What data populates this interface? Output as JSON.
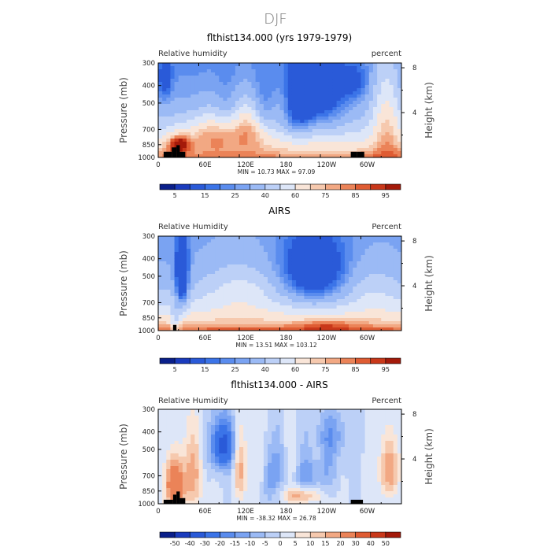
{
  "figure_title": "DJF",
  "chart_data": [
    {
      "type": "heatmap",
      "title": "flthist134.000 (yrs 1979-1979)",
      "left_label": "Relative humidity",
      "right_label": "percent",
      "ylabel": "Pressure (mb)",
      "y2label": "Height (km)",
      "x_ticks": [
        "0",
        "60E",
        "120E",
        "180",
        "120W",
        "60W"
      ],
      "x_tick_values": [
        0,
        60,
        120,
        180,
        240,
        300
      ],
      "xlim": [
        0,
        360
      ],
      "y_ticks": [
        "300",
        "400",
        "500",
        "700",
        "850",
        "1000"
      ],
      "y_tick_values": [
        300,
        400,
        500,
        700,
        850,
        1000
      ],
      "ylim": [
        300,
        1000
      ],
      "height_ticks": [
        "8",
        "4"
      ],
      "height_tick_values": [
        8,
        4
      ],
      "min_label": "MIN =",
      "min_value": "10.73",
      "max_label": "MAX =",
      "max_value": "97.09",
      "colorbar_ticks": [
        "5",
        "15",
        "25",
        "40",
        "60",
        "75",
        "85",
        "95"
      ],
      "colorbar_levels": [
        5,
        10,
        15,
        20,
        25,
        30,
        40,
        50,
        60,
        70,
        75,
        80,
        85,
        90,
        95
      ],
      "colors": [
        "#0a1f8a",
        "#1a3bbd",
        "#2a5ad8",
        "#3b74e8",
        "#5a8cee",
        "#7aa3f2",
        "#9bbaf5",
        "#bcd0f7",
        "#dde6f8",
        "#f9e5d8",
        "#f6c9ae",
        "#f2a883",
        "#eb8358",
        "#df5c33",
        "#c9381a",
        "#a41a0a"
      ],
      "mode": "model"
    },
    {
      "type": "heatmap",
      "title": "AIRS",
      "left_label": "Relative Humidity",
      "right_label": "Percent",
      "ylabel": "Pressure (mb)",
      "y2label": "Height (km)",
      "x_ticks": [
        "0",
        "60E",
        "120E",
        "180",
        "120W",
        "60W"
      ],
      "x_tick_values": [
        0,
        60,
        120,
        180,
        240,
        300
      ],
      "xlim": [
        0,
        360
      ],
      "y_ticks": [
        "300",
        "400",
        "500",
        "700",
        "850",
        "1000"
      ],
      "y_tick_values": [
        300,
        400,
        500,
        700,
        850,
        1000
      ],
      "ylim": [
        300,
        1000
      ],
      "height_ticks": [
        "8",
        "4"
      ],
      "height_tick_values": [
        8,
        4
      ],
      "min_label": "MIN =",
      "min_value": "13.51",
      "max_label": "MAX =",
      "max_value": "103.12",
      "colorbar_ticks": [
        "5",
        "15",
        "25",
        "40",
        "60",
        "75",
        "85",
        "95"
      ],
      "colorbar_levels": [
        5,
        10,
        15,
        20,
        25,
        30,
        40,
        50,
        60,
        70,
        75,
        80,
        85,
        90,
        95
      ],
      "colors": [
        "#0a1f8a",
        "#1a3bbd",
        "#2a5ad8",
        "#3b74e8",
        "#5a8cee",
        "#7aa3f2",
        "#9bbaf5",
        "#bcd0f7",
        "#dde6f8",
        "#f9e5d8",
        "#f6c9ae",
        "#f2a883",
        "#eb8358",
        "#df5c33",
        "#c9381a",
        "#a41a0a"
      ],
      "mode": "obs"
    },
    {
      "type": "heatmap",
      "title": "flthist134.000 - AIRS",
      "left_label": "Relative Humidity",
      "right_label": "Percent",
      "ylabel": "Pressure (mb)",
      "y2label": "Height (km)",
      "x_ticks": [
        "0",
        "60E",
        "120E",
        "180",
        "120W",
        "60W"
      ],
      "x_tick_values": [
        0,
        60,
        120,
        180,
        240,
        300
      ],
      "xlim": [
        0,
        360
      ],
      "y_ticks": [
        "300",
        "400",
        "500",
        "700",
        "850",
        "1000"
      ],
      "y_tick_values": [
        300,
        400,
        500,
        700,
        850,
        1000
      ],
      "ylim": [
        300,
        1000
      ],
      "height_ticks": [
        "8",
        "4"
      ],
      "height_tick_values": [
        8,
        4
      ],
      "min_label": "MIN =",
      "min_value": "-38.32",
      "max_label": "MAX =",
      "max_value": "26.78",
      "colorbar_ticks": [
        "-50",
        "-40",
        "-30",
        "-20",
        "-15",
        "-10",
        "-5",
        "0",
        "5",
        "10",
        "15",
        "20",
        "30",
        "40",
        "50"
      ],
      "colorbar_levels": [
        -50,
        -40,
        -30,
        -20,
        -15,
        -10,
        -5,
        0,
        5,
        10,
        15,
        20,
        30,
        40,
        50
      ],
      "colors": [
        "#0a1f8a",
        "#1a3bbd",
        "#2a5ad8",
        "#3b74e8",
        "#5a8cee",
        "#7aa3f2",
        "#9bbaf5",
        "#bcd0f7",
        "#dde6f8",
        "#f9e5d8",
        "#f6c9ae",
        "#f2a883",
        "#eb8358",
        "#df5c33",
        "#c9381a",
        "#a41a0a"
      ],
      "mode": "diff"
    }
  ]
}
